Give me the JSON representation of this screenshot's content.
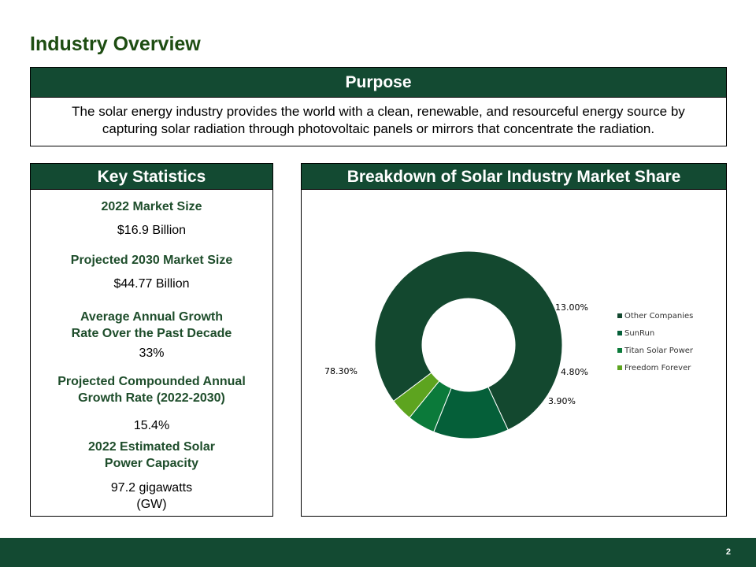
{
  "page": {
    "title": "Industry Overview",
    "page_number": "2"
  },
  "purpose": {
    "heading": "Purpose",
    "text_line1": "The solar energy industry provides the world with a clean, renewable, and resourceful energy source by",
    "text_line2": "capturing solar radiation through photovoltaic panels or mirrors that concentrate the radiation."
  },
  "stats": {
    "heading": "Key Statistics",
    "items": [
      {
        "label_line1": "2022 Market Size",
        "label_line2": "",
        "value_line1": "$16.9 Billion",
        "value_line2": ""
      },
      {
        "label_line1": "Projected 2030 Market Size",
        "label_line2": "",
        "value_line1": "$44.77 Billion",
        "value_line2": ""
      },
      {
        "label_line1": "Average Annual Growth",
        "label_line2": "Rate Over the Past Decade",
        "value_line1": "33%",
        "value_line2": ""
      },
      {
        "label_line1": "Projected Compounded Annual",
        "label_line2": "Growth Rate (2022-2030)",
        "value_line1": "15.4%",
        "value_line2": ""
      },
      {
        "label_line1": "2022 Estimated Solar",
        "label_line2": "Power Capacity",
        "value_line1": "97.2 gigawatts",
        "value_line2": "(GW)"
      }
    ]
  },
  "chart_panel": {
    "heading": "Breakdown of Solar Industry Market Share"
  },
  "colors": {
    "brand_green": "#134a32",
    "title_green": "#1e4d12"
  },
  "chart_data": {
    "type": "pie",
    "title": "Breakdown of Solar Industry Market Share",
    "donut": true,
    "legend_position": "right",
    "slices": [
      {
        "name": "Other Companies",
        "value": 78.3,
        "label": "78.30%",
        "color": "#13482f"
      },
      {
        "name": "SunRun",
        "value": 13.0,
        "label": "13.00%",
        "color": "#055f39"
      },
      {
        "name": "Titan Solar Power",
        "value": 4.8,
        "label": "4.80%",
        "color": "#0b7a3a"
      },
      {
        "name": "Freedom Forever",
        "value": 3.9,
        "label": "3.90%",
        "color": "#5da41f"
      }
    ]
  }
}
